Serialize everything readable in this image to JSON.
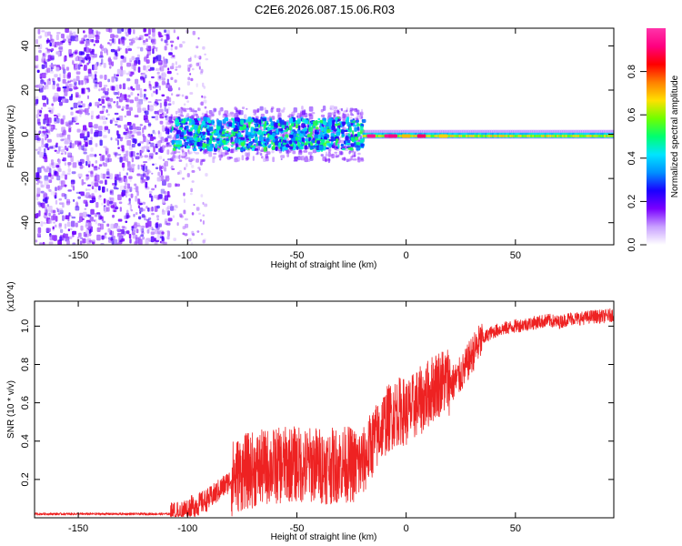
{
  "title": "C2E6.2026.087.15.06.R03",
  "chart_data": [
    {
      "type": "heatmap",
      "title": "C2E6.2026.087.15.06.R03",
      "xlabel": "Height of straight line (km)",
      "ylabel": "Frequency (Hz)",
      "xlim": [
        -170,
        95
      ],
      "ylim": [
        -50,
        48
      ],
      "x_ticks": [
        -150,
        -100,
        -50,
        0,
        50
      ],
      "x_tick_labels": [
        "-150",
        "-100",
        "-50",
        "0",
        "50"
      ],
      "y_ticks": [
        -40,
        -20,
        0,
        20,
        40
      ],
      "y_tick_labels": [
        "-40",
        "-20",
        "0",
        "20",
        "40"
      ],
      "colorbar": {
        "label": "Normalized spectral amplitude",
        "range": [
          0,
          1
        ],
        "ticks": [
          0.0,
          0.2,
          0.4,
          0.6,
          0.8
        ],
        "tick_labels": [
          "0.0",
          "0.2",
          "0.4",
          "0.6",
          "0.8"
        ],
        "colormap": [
          "#ffffff",
          "#c8a0ff",
          "#7a00ff",
          "#1a00ff",
          "#0090ff",
          "#00e5ff",
          "#00ff70",
          "#70ff00",
          "#ffe000",
          "#ff8000",
          "#ff0000",
          "#ff0080",
          "#ff33aa"
        ]
      },
      "regions": [
        {
          "name": "scattered noise",
          "x_range": [
            -170,
            -108
          ],
          "freq_range": [
            -50,
            48
          ],
          "amplitude": 0.15
        },
        {
          "name": "sporadic speckle",
          "x_range": [
            -108,
            -92
          ],
          "freq_range": [
            -50,
            48
          ],
          "amplitude": 0.1
        },
        {
          "name": "broad signal band",
          "x_range": [
            -108,
            -20
          ],
          "freq_range": [
            -10,
            8
          ],
          "amplitude": 0.4
        },
        {
          "name": "narrow signal line",
          "x_range": [
            -20,
            95
          ],
          "freq_range": [
            -3,
            3
          ],
          "amplitude": 0.8
        }
      ]
    },
    {
      "type": "line",
      "xlabel": "Height of straight line (km)",
      "ylabel": "SNR (10 * v/v)",
      "y_multiplier": "(x10^4)",
      "xlim": [
        -170,
        95
      ],
      "ylim": [
        0,
        1.13
      ],
      "x_ticks": [
        -150,
        -100,
        -50,
        0,
        50
      ],
      "x_tick_labels": [
        "-150",
        "-100",
        "-50",
        "0",
        "50"
      ],
      "y_ticks": [
        0.2,
        0.4,
        0.6,
        0.8,
        1.0
      ],
      "y_tick_labels": [
        "0.2",
        "0.4",
        "0.6",
        "0.8",
        "1.0"
      ],
      "color": "#ee2222",
      "series": [
        {
          "name": "SNR",
          "x": [
            -170,
            -150,
            -130,
            -115,
            -108,
            -103,
            -100,
            -95,
            -90,
            -86,
            -82,
            -78,
            -74,
            -70,
            -66,
            -62,
            -58,
            -54,
            -50,
            -46,
            -42,
            -38,
            -34,
            -30,
            -26,
            -23,
            -21,
            -19,
            -16,
            -13,
            -11,
            -8,
            -5,
            -2,
            0,
            2,
            5,
            8,
            11,
            14,
            17,
            19,
            21,
            24,
            27,
            30,
            34,
            38,
            42,
            46,
            50,
            55,
            60,
            65,
            70,
            75,
            80,
            85,
            90,
            95
          ],
          "y": [
            0.02,
            0.02,
            0.02,
            0.02,
            0.02,
            0.03,
            0.05,
            0.07,
            0.1,
            0.14,
            0.18,
            0.22,
            0.24,
            0.25,
            0.26,
            0.27,
            0.27,
            0.28,
            0.28,
            0.27,
            0.28,
            0.27,
            0.27,
            0.28,
            0.28,
            0.27,
            0.28,
            0.3,
            0.38,
            0.43,
            0.48,
            0.52,
            0.55,
            0.56,
            0.55,
            0.56,
            0.6,
            0.62,
            0.66,
            0.7,
            0.71,
            0.72,
            0.7,
            0.73,
            0.78,
            0.85,
            0.92,
            0.96,
            0.98,
            0.99,
            1.0,
            1.01,
            1.02,
            1.03,
            1.02,
            1.04,
            1.04,
            1.05,
            1.05,
            1.06
          ]
        }
      ]
    }
  ]
}
